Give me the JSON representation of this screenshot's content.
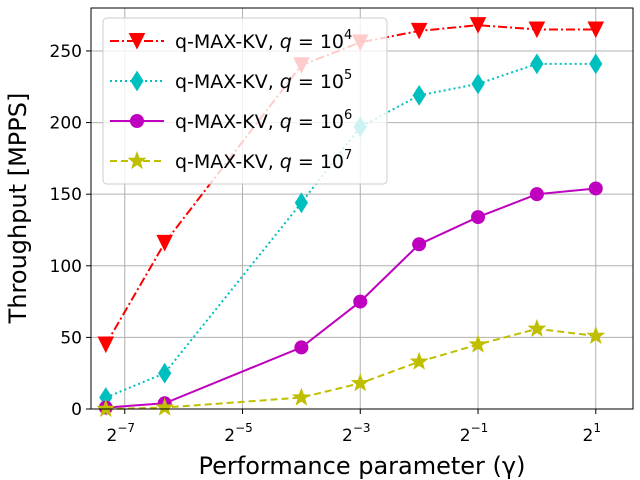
{
  "chart_data": {
    "type": "line",
    "xlabel": "Performance parameter (γ)",
    "ylabel": "Throughput [MPPS]",
    "x_scale": "log2",
    "xlim": [
      0.00525,
      3.1
    ],
    "ylim": [
      0,
      280
    ],
    "grid": true,
    "legend_position": "top-left",
    "x_ticks": [
      {
        "value": 0.0078125,
        "base": "2",
        "exp": "−7"
      },
      {
        "value": 0.03125,
        "base": "2",
        "exp": "−5"
      },
      {
        "value": 0.125,
        "base": "2",
        "exp": "−3"
      },
      {
        "value": 0.5,
        "base": "2",
        "exp": "−1"
      },
      {
        "value": 2,
        "base": "2",
        "exp": "1"
      }
    ],
    "y_ticks": [
      0,
      50,
      100,
      150,
      200,
      250
    ],
    "series": [
      {
        "name_prefix": "q-MAX-KV, ",
        "name_var": "q",
        "name_eq": " = 10",
        "name_exp": "4",
        "color": "#ff0000",
        "linestyle": "dashdot",
        "marker": "triangle-down",
        "x": [
          0.00625,
          0.0125,
          0.0625,
          0.125,
          0.25,
          0.5,
          1,
          2
        ],
        "y": [
          45,
          116,
          240,
          256,
          264,
          268,
          265,
          265
        ]
      },
      {
        "name_prefix": "q-MAX-KV, ",
        "name_var": "q",
        "name_eq": " = 10",
        "name_exp": "5",
        "color": "#00bfbf",
        "linestyle": "dotted",
        "marker": "thin-diamond",
        "x": [
          0.00625,
          0.0125,
          0.0625,
          0.125,
          0.25,
          0.5,
          1,
          2
        ],
        "y": [
          8,
          25,
          144,
          197,
          219,
          227,
          241,
          241
        ]
      },
      {
        "name_prefix": "q-MAX-KV, ",
        "name_var": "q",
        "name_eq": " = 10",
        "name_exp": "6",
        "color": "#bf00bf",
        "linestyle": "solid",
        "marker": "circle",
        "x": [
          0.00625,
          0.0125,
          0.0625,
          0.125,
          0.25,
          0.5,
          1,
          2
        ],
        "y": [
          1,
          4,
          43,
          75,
          115,
          134,
          150,
          154
        ]
      },
      {
        "name_prefix": "q-MAX-KV, ",
        "name_var": "q",
        "name_eq": " = 10",
        "name_exp": "7",
        "color": "#bfbf00",
        "linestyle": "dashed",
        "marker": "star",
        "x": [
          0.00625,
          0.0125,
          0.0625,
          0.125,
          0.25,
          0.5,
          1,
          2
        ],
        "y": [
          0,
          1,
          8,
          18,
          33,
          45,
          56,
          51
        ]
      }
    ]
  }
}
